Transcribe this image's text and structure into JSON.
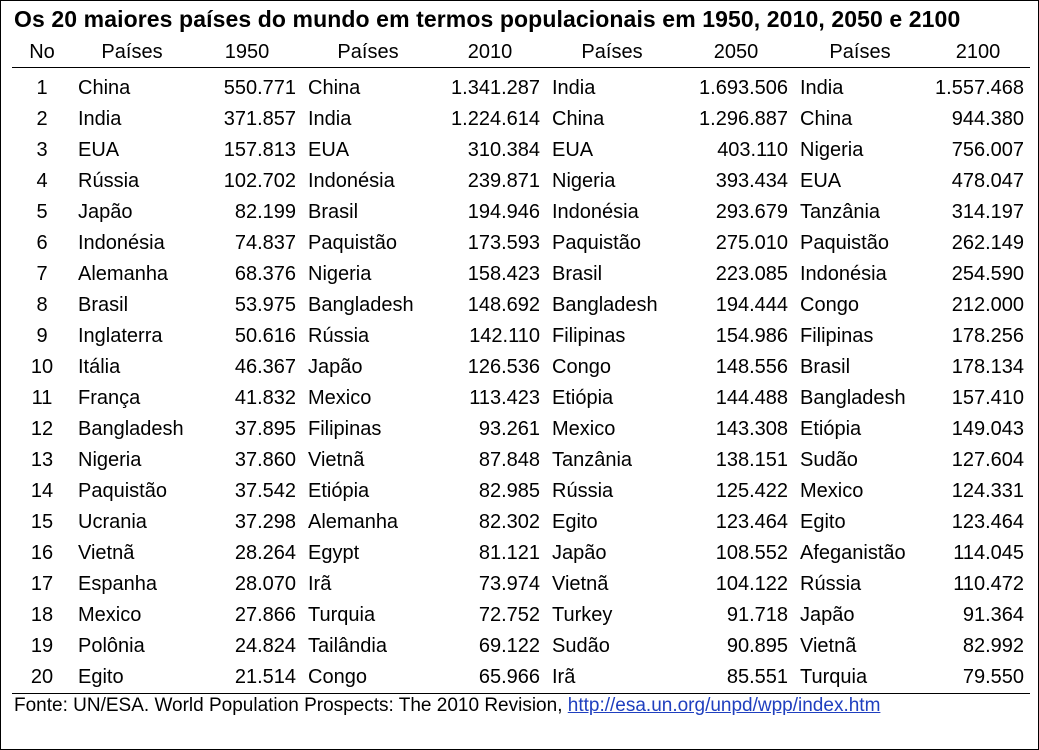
{
  "title": "Os 20 maiores países do mundo em termos populacionais em 1950, 2010, 2050 e 2100",
  "headers": [
    "No",
    "Países",
    "1950",
    "Países",
    "2010",
    "Países",
    "2050",
    "Países",
    "2100"
  ],
  "rows": [
    [
      "1",
      "China",
      "550.771",
      "China",
      "1.341.287",
      "India",
      "1.693.506",
      "India",
      "1.557.468"
    ],
    [
      "2",
      "India",
      "371.857",
      "India",
      "1.224.614",
      "China",
      "1.296.887",
      "China",
      "944.380"
    ],
    [
      "3",
      "EUA",
      "157.813",
      "EUA",
      "310.384",
      "EUA",
      "403.110",
      "Nigeria",
      "756.007"
    ],
    [
      "4",
      "Rússia",
      "102.702",
      "Indonésia",
      "239.871",
      "Nigeria",
      "393.434",
      "EUA",
      "478.047"
    ],
    [
      "5",
      "Japão",
      "82.199",
      "Brasil",
      "194.946",
      "Indonésia",
      "293.679",
      "Tanzânia",
      "314.197"
    ],
    [
      "6",
      "Indonésia",
      "74.837",
      "Paquistão",
      "173.593",
      "Paquistão",
      "275.010",
      "Paquistão",
      "262.149"
    ],
    [
      "7",
      "Alemanha",
      "68.376",
      "Nigeria",
      "158.423",
      "Brasil",
      "223.085",
      "Indonésia",
      "254.590"
    ],
    [
      "8",
      "Brasil",
      "53.975",
      "Bangladesh",
      "148.692",
      "Bangladesh",
      "194.444",
      "Congo",
      "212.000"
    ],
    [
      "9",
      "Inglaterra",
      "50.616",
      "Rússia",
      "142.110",
      "Filipinas",
      "154.986",
      "Filipinas",
      "178.256"
    ],
    [
      "10",
      "Itália",
      "46.367",
      "Japão",
      "126.536",
      "Congo",
      "148.556",
      "Brasil",
      "178.134"
    ],
    [
      "11",
      "França",
      "41.832",
      "Mexico",
      "113.423",
      "Etiópia",
      "144.488",
      "Bangladesh",
      "157.410"
    ],
    [
      "12",
      "Bangladesh",
      "37.895",
      "Filipinas",
      "93.261",
      "Mexico",
      "143.308",
      "Etiópia",
      "149.043"
    ],
    [
      "13",
      "Nigeria",
      "37.860",
      "Vietnã",
      "87.848",
      "Tanzânia",
      "138.151",
      "Sudão",
      "127.604"
    ],
    [
      "14",
      "Paquistão",
      "37.542",
      "Etiópia",
      "82.985",
      "Rússia",
      "125.422",
      "Mexico",
      "124.331"
    ],
    [
      "15",
      "Ucrania",
      "37.298",
      "Alemanha",
      "82.302",
      "Egito",
      "123.464",
      "Egito",
      "123.464"
    ],
    [
      "16",
      "Vietnã",
      "28.264",
      "Egypt",
      "81.121",
      "Japão",
      "108.552",
      "Afeganistão",
      "114.045"
    ],
    [
      "17",
      "Espanha",
      "28.070",
      "Irã",
      "73.974",
      "Vietnã",
      "104.122",
      "Rússia",
      "110.472"
    ],
    [
      "18",
      "Mexico",
      "27.866",
      "Turquia",
      "72.752",
      "Turkey",
      "91.718",
      "Japão",
      "91.364"
    ],
    [
      "19",
      "Polônia",
      "24.824",
      "Tailândia",
      "69.122",
      "Sudão",
      "90.895",
      "Vietnã",
      "82.992"
    ],
    [
      "20",
      "Egito",
      "21.514",
      "Congo",
      "65.966",
      "Irã",
      "85.551",
      "Turquia",
      "79.550"
    ]
  ],
  "footer": {
    "source_text": "Fonte: UN/ESA. World Population Prospects: The 2010 Revision, ",
    "link_text": "http://esa.un.org/unpd/wpp/index.htm"
  },
  "colors": {
    "link": "#1f3fbf",
    "text": "#000000"
  }
}
